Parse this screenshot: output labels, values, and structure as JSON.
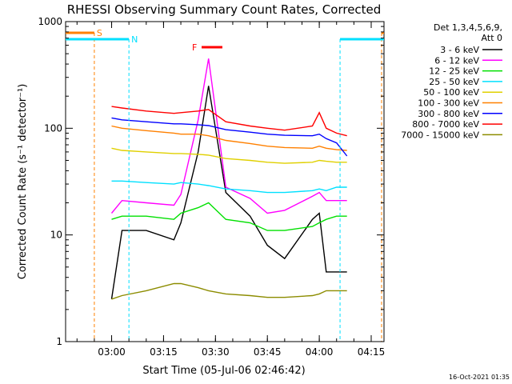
{
  "chart_data": {
    "type": "line",
    "title": "RHESSI Observing Summary Count Rates, Corrected",
    "xlabel": "Start Time (05-Jul-06 02:46:42)",
    "ylabel": "Corrected Count Rate (s⁻¹ detector⁻¹)",
    "y_scale": "log",
    "ylim": [
      1,
      1000
    ],
    "xlim_minutes_after_start": [
      0,
      92
    ],
    "x_ticks": [
      "03:00",
      "03:15",
      "03:30",
      "03:45",
      "04:00",
      "04:15"
    ],
    "y_ticks": [
      "1",
      "10",
      "100",
      "1000"
    ],
    "legend_title": [
      "Det 1,3,4,5,6,9,",
      "Att 0"
    ],
    "legend_position": "right",
    "series": [
      {
        "name": "3 - 6 keV",
        "color": "#000000",
        "times": [
          "03:00",
          "03:03",
          "03:10",
          "03:18",
          "03:20",
          "03:25",
          "03:28",
          "03:33",
          "03:40",
          "03:45",
          "03:50",
          "03:58",
          "04:00",
          "04:02",
          "04:05",
          "04:08"
        ],
        "values": [
          2.5,
          11,
          11,
          9,
          13,
          60,
          250,
          25,
          15,
          8,
          6,
          14,
          16,
          4.5,
          4.5,
          4.5
        ]
      },
      {
        "name": "6 - 12 keV",
        "color": "#ff00ff",
        "times": [
          "03:00",
          "03:03",
          "03:10",
          "03:18",
          "03:20",
          "03:25",
          "03:28",
          "03:33",
          "03:40",
          "03:45",
          "03:50",
          "03:58",
          "04:00",
          "04:02",
          "04:05",
          "04:08"
        ],
        "values": [
          16,
          21,
          20,
          19,
          24,
          120,
          450,
          28,
          22,
          16,
          17,
          23,
          25,
          21,
          21,
          21
        ]
      },
      {
        "name": "12 - 25 keV",
        "color": "#00e000",
        "times": [
          "03:00",
          "03:03",
          "03:10",
          "03:18",
          "03:20",
          "03:25",
          "03:28",
          "03:33",
          "03:40",
          "03:45",
          "03:50",
          "03:58",
          "04:00",
          "04:02",
          "04:05",
          "04:08"
        ],
        "values": [
          14,
          15,
          15,
          14,
          16,
          18,
          20,
          14,
          13,
          11,
          11,
          12,
          13,
          14,
          15,
          15
        ]
      },
      {
        "name": "25 - 50 keV",
        "color": "#00e0ff",
        "times": [
          "03:00",
          "03:03",
          "03:10",
          "03:18",
          "03:20",
          "03:25",
          "03:28",
          "03:33",
          "03:40",
          "03:45",
          "03:50",
          "03:58",
          "04:00",
          "04:02",
          "04:05",
          "04:08"
        ],
        "values": [
          32,
          32,
          31,
          30,
          31,
          30,
          29,
          27,
          26,
          25,
          25,
          26,
          27,
          26,
          28,
          28
        ]
      },
      {
        "name": "50 - 100 keV",
        "color": "#e0d000",
        "times": [
          "03:00",
          "03:03",
          "03:10",
          "03:18",
          "03:20",
          "03:25",
          "03:28",
          "03:33",
          "03:40",
          "03:45",
          "03:50",
          "03:58",
          "04:00",
          "04:02",
          "04:05",
          "04:08"
        ],
        "values": [
          65,
          62,
          60,
          58,
          58,
          57,
          56,
          52,
          50,
          48,
          47,
          48,
          50,
          49,
          48,
          48
        ]
      },
      {
        "name": "100 - 300 keV",
        "color": "#ff8000",
        "times": [
          "03:00",
          "03:03",
          "03:10",
          "03:18",
          "03:20",
          "03:25",
          "03:28",
          "03:33",
          "03:40",
          "03:45",
          "03:50",
          "03:58",
          "04:00",
          "04:02",
          "04:05",
          "04:08"
        ],
        "values": [
          105,
          100,
          95,
          90,
          88,
          88,
          85,
          77,
          72,
          68,
          66,
          65,
          68,
          65,
          63,
          62
        ]
      },
      {
        "name": "300 - 800 keV",
        "color": "#0000ff",
        "times": [
          "03:00",
          "03:03",
          "03:10",
          "03:18",
          "03:20",
          "03:25",
          "03:28",
          "03:33",
          "03:40",
          "03:45",
          "03:50",
          "03:58",
          "04:00",
          "04:02",
          "04:05",
          "04:08"
        ],
        "values": [
          125,
          120,
          115,
          110,
          110,
          108,
          106,
          97,
          92,
          88,
          86,
          85,
          88,
          80,
          73,
          55
        ]
      },
      {
        "name": "800 - 7000 keV",
        "color": "#ff0000",
        "times": [
          "03:00",
          "03:03",
          "03:10",
          "03:18",
          "03:20",
          "03:25",
          "03:28",
          "03:33",
          "03:40",
          "03:45",
          "03:50",
          "03:58",
          "04:00",
          "04:02",
          "04:05",
          "04:08"
        ],
        "values": [
          160,
          155,
          145,
          138,
          140,
          145,
          150,
          115,
          105,
          100,
          96,
          105,
          140,
          100,
          90,
          85
        ]
      },
      {
        "name": "7000 - 15000 keV",
        "color": "#8c8c00",
        "times": [
          "03:00",
          "03:03",
          "03:10",
          "03:18",
          "03:20",
          "03:25",
          "03:28",
          "03:33",
          "03:40",
          "03:45",
          "03:50",
          "03:58",
          "04:00",
          "04:02",
          "04:05",
          "04:08"
        ],
        "values": [
          2.5,
          2.7,
          3,
          3.5,
          3.5,
          3.2,
          3,
          2.8,
          2.7,
          2.6,
          2.6,
          2.7,
          2.8,
          3,
          3,
          3
        ]
      }
    ],
    "flag_bars": [
      {
        "label": "S",
        "color": "#ff8000",
        "segments": [
          [
            "02:46:42",
            "02:55"
          ],
          [
            "04:18",
            "04:20"
          ]
        ]
      },
      {
        "label": "N",
        "color": "#00e0ff",
        "segments": [
          [
            "02:46:42",
            "03:05"
          ],
          [
            "04:06",
            "04:20"
          ]
        ]
      },
      {
        "label": "F",
        "color": "#ff0000",
        "segments": [
          [
            "03:26",
            "03:32"
          ]
        ]
      }
    ],
    "stamp": "16-Oct-2021 01:35"
  }
}
